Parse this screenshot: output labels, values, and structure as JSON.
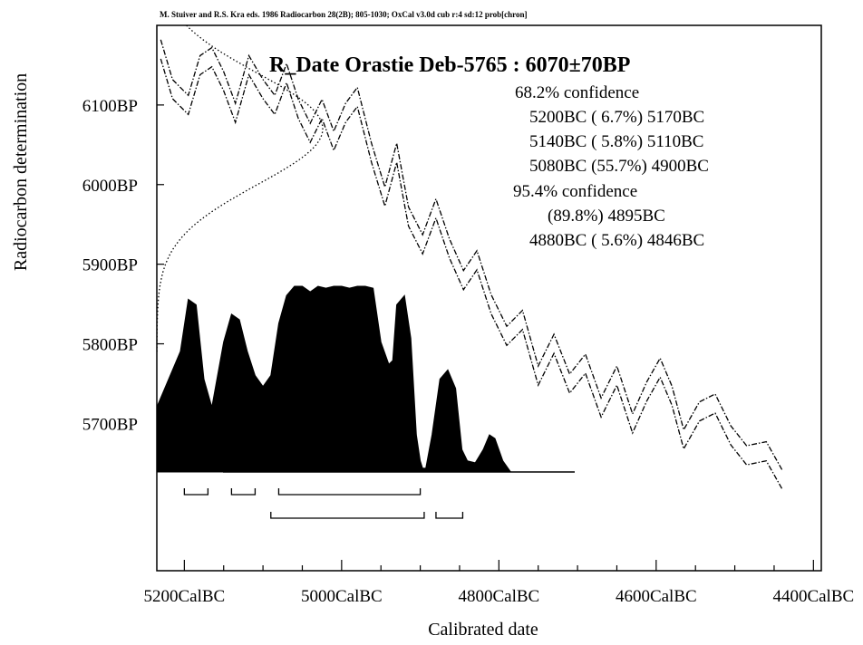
{
  "header": {
    "citation": "M. Stuiver and R.S. Kra eds. 1986 Radiocarbon 28(2B); 805-1030; OxCal v3.0d cub r:4 sd:12 prob[chron]"
  },
  "chart_data": {
    "type": "area",
    "title": "R_Date Orastie Deb-5765 : 6070±70BP",
    "xlabel": "Calibrated date",
    "ylabel": "Radiocarbon determination",
    "x_ticks": [
      "5200CalBC",
      "5000CalBC",
      "4800CalBC",
      "4600CalBC",
      "4400CalBC"
    ],
    "x_tick_values": [
      -5200,
      -5000,
      -4800,
      -4600,
      -4400
    ],
    "y_ticks": [
      "6100BP",
      "6000BP",
      "5900BP",
      "5800BP",
      "5700BP"
    ],
    "y_tick_values": [
      6100,
      6000,
      5900,
      5800,
      5700
    ],
    "xlim": [
      -5235,
      -4390
    ],
    "ylim": [
      5515,
      6200
    ],
    "confidence_blocks": [
      {
        "label": "68.2% confidence",
        "ranges": [
          "5200BC ( 6.7%) 5170BC",
          "5140BC ( 5.8%) 5110BC",
          "5080BC (55.7%) 4900BC"
        ]
      },
      {
        "label": "95.4% confidence",
        "ranges": [
          "(89.8%) 4895BC",
          "4880BC ( 5.6%) 4846BC"
        ]
      }
    ],
    "range_bars_68": [
      [
        -5200,
        -5170
      ],
      [
        -5140,
        -5110
      ],
      [
        -5080,
        -4900
      ]
    ],
    "range_bars_95": [
      [
        -5090,
        -4895
      ],
      [
        -4880,
        -4846
      ]
    ],
    "probability_distribution": {
      "x": [
        -5240,
        -5205,
        -5195,
        -5185,
        -5175,
        -5165,
        -5150,
        -5140,
        -5130,
        -5120,
        -5110,
        -5100,
        -5090,
        -5080,
        -5070,
        -5060,
        -5050,
        -5040,
        -5030,
        -5020,
        -5010,
        -5000,
        -4990,
        -4980,
        -4970,
        -4960,
        -4950,
        -4940,
        -4935,
        -4930,
        -4920,
        -4912,
        -4905,
        -4900,
        -4897,
        -4893,
        -4885,
        -4875,
        -4865,
        -4855,
        -4847,
        -4840,
        -4830,
        -4820,
        -4812,
        -4805,
        -4795,
        -4785,
        -4760,
        -4730
      ],
      "p": [
        0.3,
        0.65,
        0.93,
        0.9,
        0.5,
        0.35,
        0.7,
        0.85,
        0.82,
        0.65,
        0.52,
        0.46,
        0.52,
        0.8,
        0.95,
        1.0,
        1.0,
        0.97,
        1.0,
        0.99,
        1.0,
        1.0,
        0.99,
        1.0,
        1.0,
        0.99,
        0.7,
        0.58,
        0.6,
        0.9,
        0.95,
        0.72,
        0.2,
        0.06,
        0.02,
        0.02,
        0.2,
        0.5,
        0.55,
        0.45,
        0.12,
        0.06,
        0.05,
        0.12,
        0.2,
        0.18,
        0.06,
        0.0,
        0.0,
        0.0
      ]
    },
    "calibration_curve": {
      "x": [
        -5230,
        -5215,
        -5195,
        -5180,
        -5165,
        -5150,
        -5135,
        -5118,
        -5100,
        -5085,
        -5070,
        -5055,
        -5040,
        -5025,
        -5010,
        -4995,
        -4980,
        -4962,
        -4945,
        -4930,
        -4915,
        -4897,
        -4880,
        -4863,
        -4845,
        -4828,
        -4810,
        -4790,
        -4770,
        -4750,
        -4730,
        -4710,
        -4690,
        -4670,
        -4650,
        -4630,
        -4612,
        -4595,
        -4580,
        -4565,
        -4545,
        -4525,
        -4505,
        -4485,
        -4460,
        -4440
      ],
      "y": [
        6170,
        6120,
        6100,
        6150,
        6160,
        6130,
        6090,
        6150,
        6120,
        6100,
        6140,
        6095,
        6065,
        6095,
        6055,
        6090,
        6110,
        6040,
        5985,
        6040,
        5960,
        5925,
        5970,
        5920,
        5880,
        5905,
        5850,
        5810,
        5830,
        5760,
        5800,
        5750,
        5775,
        5720,
        5760,
        5700,
        5740,
        5770,
        5735,
        5680,
        5715,
        5725,
        5685,
        5660,
        5665,
        5630
      ],
      "band_half_width": 12
    },
    "radiocarbon_distribution": {
      "mean": 6070,
      "sigma": 70
    }
  }
}
